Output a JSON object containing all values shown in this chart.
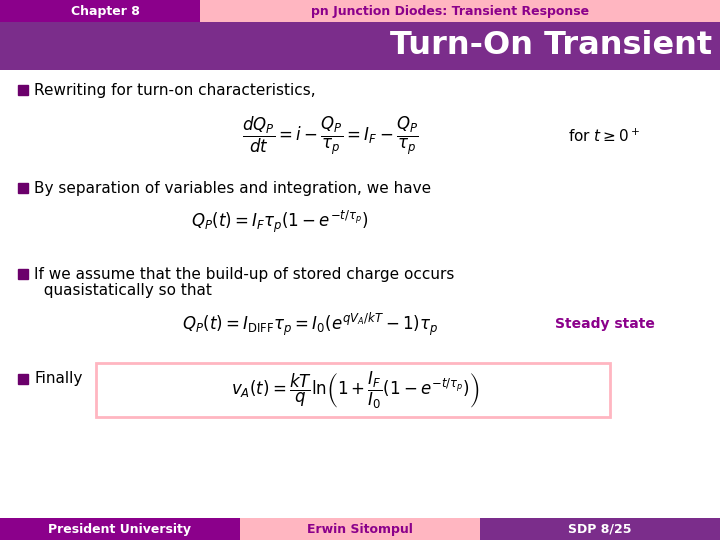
{
  "header_left_color": "#8B008B",
  "header_right_color": "#FFB6C1",
  "title_bar_color": "#7B2D8B",
  "title_text": "Turn-On Transient",
  "title_text_color": "#FFFFFF",
  "chapter_text": "Chapter 8",
  "chapter_text_color": "#FFFFFF",
  "subtitle_text": "pn Junction Diodes: Transient Response",
  "subtitle_text_color": "#FFFFFF",
  "bg_color": "#FFFFFF",
  "bullet_color": "#6B006B",
  "text_color": "#000000",
  "footer_left_color": "#8B008B",
  "footer_mid_color": "#FFB6C1",
  "footer_right_color": "#7B2D8B",
  "footer_left_text": "President University",
  "footer_mid_text": "Erwin Sitompul",
  "footer_right_text": "SDP 8/25",
  "footer_text_color_left": "#FFFFFF",
  "footer_text_color_mid": "#8B008B",
  "footer_text_color_right": "#FFFFFF",
  "bullet1": "Rewriting for turn-on characteristics,",
  "bullet2": "By separation of variables and integration, we have",
  "bullet3a": "If we assume that the build-up of stored charge occurs",
  "bullet3b": "  quasistatically so that",
  "bullet4": "Finally",
  "steady_state_text": "Steady state",
  "box_color": "#FFB6C1",
  "accent_color": "#8B008B"
}
